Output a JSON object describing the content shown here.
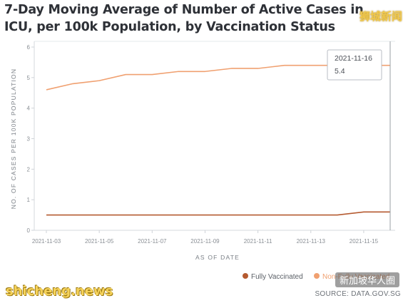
{
  "page": {
    "title": "7-Day Moving Average of Number of Active Cases in ICU, per 100k Population, by Vaccination Status",
    "source": "SOURCE: DATA.GOV.SG",
    "watermark_top": "狮城新闻",
    "watermark_left": "shicheng.news",
    "watermark_right": "新加坡华人圈"
  },
  "chart_data": {
    "type": "line",
    "title": "7-Day Moving Average of Number of Active Cases in ICU, per 100k Population, by Vaccination Status",
    "xlabel": "AS OF DATE",
    "ylabel": "NO. OF CASES PER 100K POPULATION",
    "ylim": [
      0,
      6
    ],
    "yticks": [
      "0",
      "1",
      "2",
      "3",
      "4",
      "5",
      "6"
    ],
    "x": [
      "2021-11-03",
      "2021-11-04",
      "2021-11-05",
      "2021-11-06",
      "2021-11-07",
      "2021-11-08",
      "2021-11-09",
      "2021-11-10",
      "2021-11-11",
      "2021-11-12",
      "2021-11-13",
      "2021-11-14",
      "2021-11-15",
      "2021-11-16"
    ],
    "xticks": [
      "2021-11-03",
      "2021-11-05",
      "2021-11-07",
      "2021-11-09",
      "2021-11-11",
      "2021-11-13",
      "2021-11-15"
    ],
    "series": [
      {
        "name": "Fully Vaccinated",
        "color": "#b55a30",
        "values": [
          0.5,
          0.5,
          0.5,
          0.5,
          0.5,
          0.5,
          0.5,
          0.5,
          0.5,
          0.5,
          0.5,
          0.5,
          0.6,
          0.6
        ]
      },
      {
        "name": "Non-Fully Vaccinated",
        "color": "#f0a070",
        "values": [
          4.6,
          4.8,
          4.9,
          5.1,
          5.1,
          5.2,
          5.2,
          5.3,
          5.3,
          5.4,
          5.4,
          5.4,
          5.4,
          5.4
        ]
      }
    ],
    "tooltip": {
      "date": "2021-11-16",
      "value": "5.4"
    },
    "grid": false,
    "legend": "bottom-right"
  }
}
